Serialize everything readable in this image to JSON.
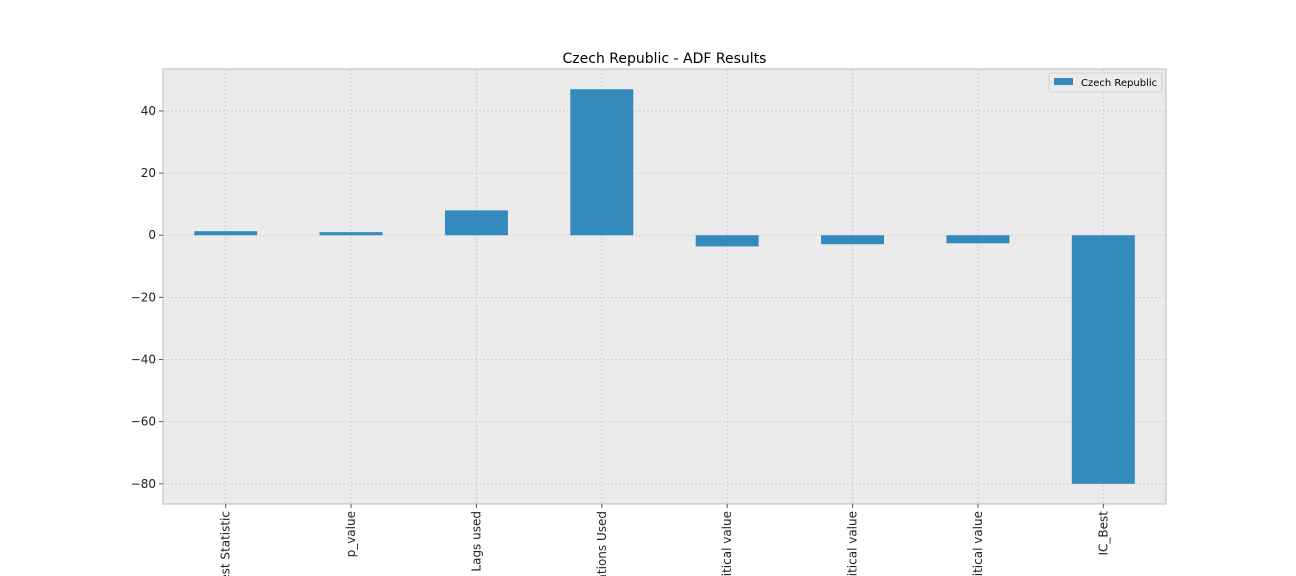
{
  "chart_data": {
    "type": "bar",
    "title": "Czech Republic - ADF Results",
    "xlabel": "",
    "ylabel": "",
    "categories": [
      "est Statistic",
      "p_value",
      "Lags used",
      "ations Used",
      "ritical value",
      "ritical value",
      "ritical value",
      "IC_Best"
    ],
    "series": [
      {
        "name": "Czech Republic",
        "values": [
          1.3,
          1.0,
          8.0,
          47.0,
          -3.6,
          -2.9,
          -2.6,
          -80.0
        ]
      }
    ],
    "ylim": [
      -86.5,
      53.5
    ],
    "yticks": [
      -80,
      -60,
      -40,
      -20,
      0,
      20,
      40
    ],
    "ytick_labels": [
      "−80",
      "−60",
      "−40",
      "−20",
      "0",
      "20",
      "40"
    ],
    "grid": true,
    "legend": "top-right",
    "colors": {
      "bar": "#348abd",
      "plot_background": "#ebebeb",
      "grid": "#c8c8c8"
    }
  }
}
